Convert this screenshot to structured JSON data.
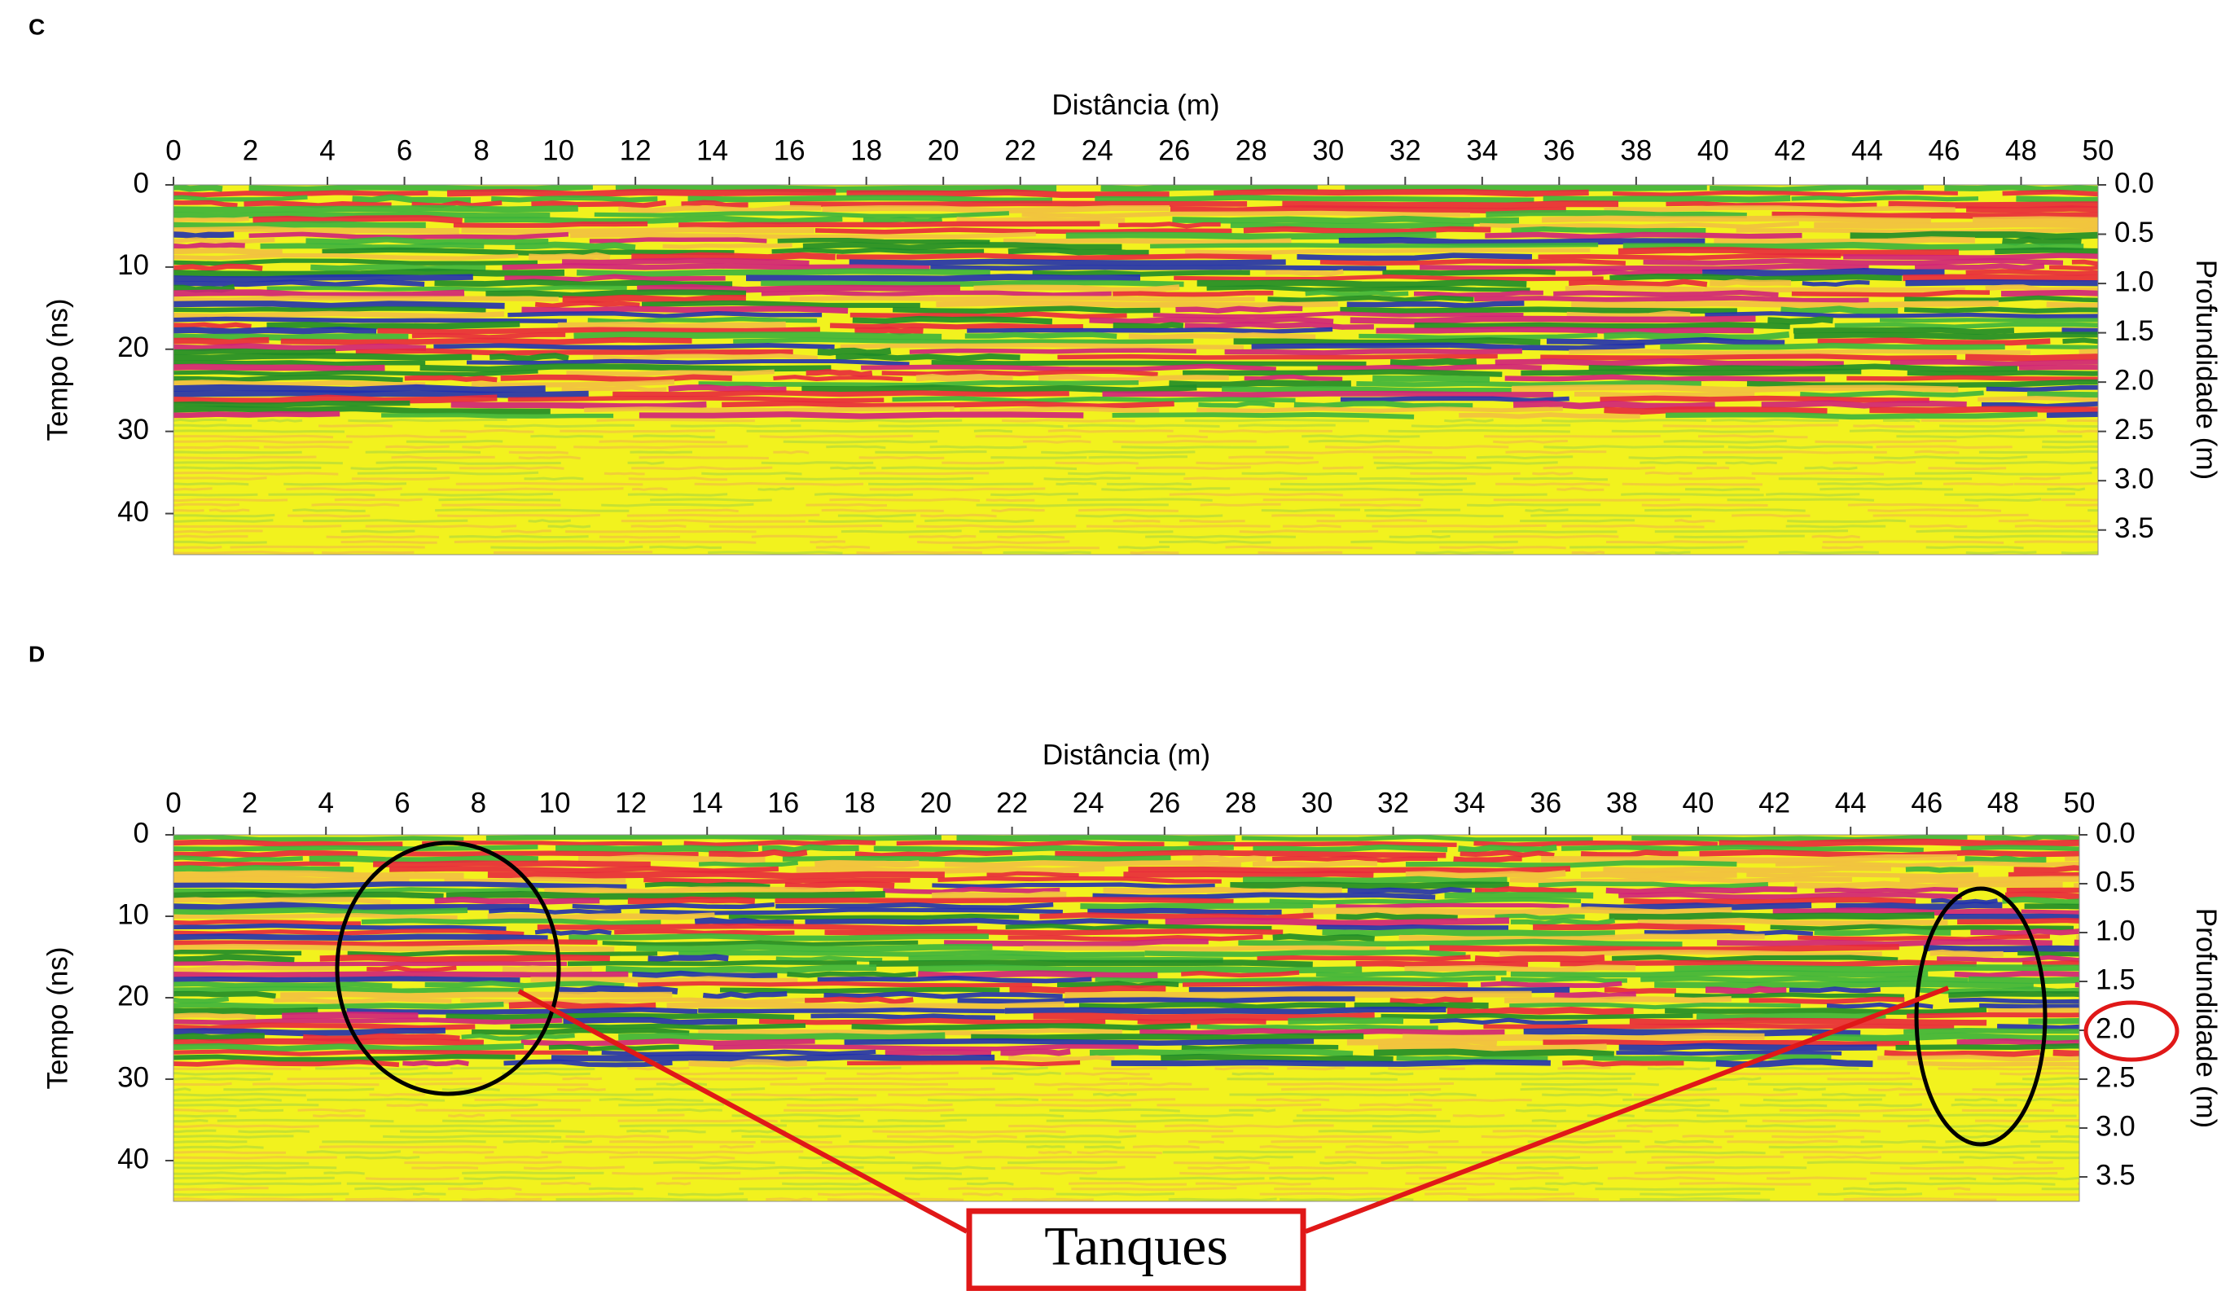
{
  "chart_data": [
    {
      "type": "radargram",
      "title": "C",
      "xlabel": "Distância (m)",
      "ylabel": "Tempo (ns)",
      "y2label": "Profundidade (m)",
      "xlim": [
        0,
        50
      ],
      "xticks": [
        0,
        2,
        4,
        6,
        8,
        10,
        12,
        14,
        16,
        18,
        20,
        22,
        24,
        26,
        28,
        30,
        32,
        34,
        36,
        38,
        40,
        42,
        44,
        46,
        48,
        50
      ],
      "ylim": [
        0,
        45
      ],
      "yticks": [
        0,
        10,
        20,
        30,
        40
      ],
      "y2lim": [
        0,
        3.75
      ],
      "y2ticks": [
        {
          "value": 0,
          "label": "0.0"
        },
        0.5,
        {
          "value": 1,
          "label": "1.0"
        },
        1.5,
        {
          "value": 2,
          "label": "2.0"
        },
        2.5,
        {
          "value": 3,
          "label": "3.0"
        },
        3.5
      ]
    },
    {
      "type": "radargram",
      "title": "D",
      "xlabel": "Distância (m)",
      "ylabel": "Tempo (ns)",
      "y2label": "Profundidade (m)",
      "xlim": [
        0,
        50
      ],
      "xticks": [
        0,
        2,
        4,
        6,
        8,
        10,
        12,
        14,
        16,
        18,
        20,
        22,
        24,
        26,
        28,
        30,
        32,
        34,
        36,
        38,
        40,
        42,
        44,
        46,
        48,
        50
      ],
      "ylim": [
        0,
        45
      ],
      "yticks": [
        0,
        10,
        20,
        30,
        40
      ],
      "y2lim": [
        0,
        3.75
      ],
      "y2ticks": [
        {
          "value": 0,
          "label": "0.0"
        },
        0.5,
        {
          "value": 1,
          "label": "1.0"
        },
        1.5,
        {
          "value": 2,
          "label": "2.0"
        },
        2.5,
        {
          "value": 3,
          "label": "3.0"
        },
        3.5
      ],
      "annotations": [
        "Tanques"
      ]
    }
  ]
}
